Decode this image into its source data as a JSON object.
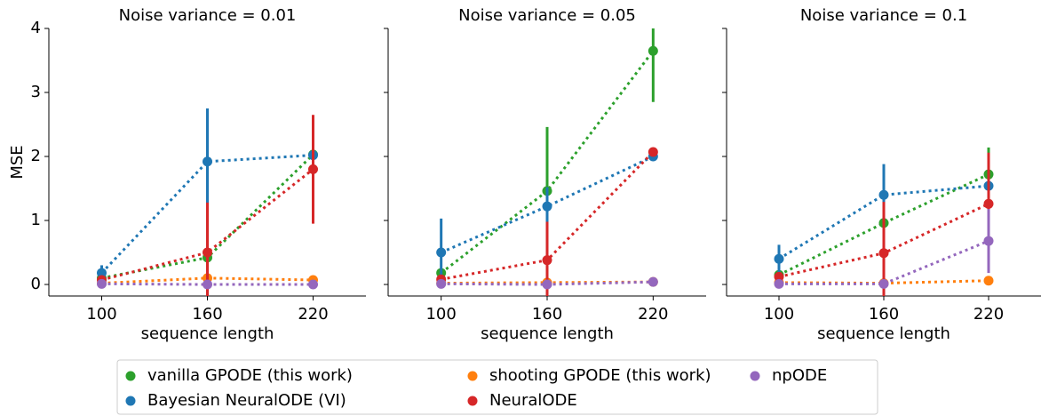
{
  "chart_data": [
    {
      "type": "pointplot",
      "title": "Noise variance = 0.01",
      "xlabel": "sequence length",
      "ylabel": "MSE",
      "categories": [
        "100",
        "160",
        "220"
      ],
      "ylim": [
        -0.18,
        4
      ],
      "yticks": [
        0,
        1,
        2,
        3,
        4
      ],
      "series": [
        {
          "values": [
            0.1,
            0.42,
            2.03
          ],
          "errors": [
            0.05,
            0.05,
            0.05
          ]
        },
        {
          "values": [
            0.18,
            1.92,
            2.02
          ],
          "errors": [
            0.12,
            0.83,
            0.03
          ]
        },
        {
          "values": [
            0.02,
            0.1,
            0.07
          ],
          "errors": [
            0.02,
            0.03,
            0.06
          ]
        },
        {
          "values": [
            0.07,
            0.5,
            1.8
          ],
          "errors": [
            0.04,
            0.78,
            0.85
          ]
        },
        {
          "values": [
            0.01,
            0.0,
            0.0
          ],
          "errors": [
            0.01,
            0.01,
            0.01
          ]
        }
      ]
    },
    {
      "type": "pointplot",
      "title": "Noise variance = 0.05",
      "xlabel": "sequence length",
      "categories": [
        "100",
        "160",
        "220"
      ],
      "ylim": [
        -0.18,
        4
      ],
      "yticks": [
        0,
        1,
        2,
        3,
        4
      ],
      "series": [
        {
          "values": [
            0.18,
            1.46,
            3.65
          ],
          "errors": [
            0.05,
            1.0,
            0.8
          ]
        },
        {
          "values": [
            0.5,
            1.22,
            2.0
          ],
          "errors": [
            0.53,
            0.3,
            0.05
          ]
        },
        {
          "values": [
            0.02,
            0.03,
            0.04
          ],
          "errors": [
            0.01,
            0.01,
            0.01
          ]
        },
        {
          "values": [
            0.08,
            0.38,
            2.07
          ],
          "errors": [
            0.04,
            0.6,
            0.05
          ]
        },
        {
          "values": [
            0.01,
            0.0,
            0.04
          ],
          "errors": [
            0.01,
            0.01,
            0.01
          ]
        }
      ]
    },
    {
      "type": "pointplot",
      "title": "Noise variance = 0.1",
      "xlabel": "sequence length",
      "categories": [
        "100",
        "160",
        "220"
      ],
      "ylim": [
        -0.18,
        4
      ],
      "yticks": [
        0,
        1,
        2,
        3,
        4
      ],
      "series": [
        {
          "values": [
            0.15,
            0.96,
            1.72
          ],
          "errors": [
            0.05,
            0.5,
            0.42
          ]
        },
        {
          "values": [
            0.4,
            1.4,
            1.54
          ],
          "errors": [
            0.22,
            0.48,
            0.5
          ]
        },
        {
          "values": [
            0.03,
            0.02,
            0.06
          ],
          "errors": [
            0.01,
            0.01,
            0.02
          ]
        },
        {
          "values": [
            0.12,
            0.49,
            1.26
          ],
          "errors": [
            0.05,
            0.8,
            0.8
          ]
        },
        {
          "values": [
            0.01,
            0.01,
            0.68
          ],
          "errors": [
            0.01,
            0.01,
            0.5
          ]
        }
      ]
    }
  ],
  "legend": [
    {
      "name": "vanilla GPODE (this work)",
      "color": "#2ca02c"
    },
    {
      "name": "Bayesian NeuralODE (VI)",
      "color": "#1f77b4"
    },
    {
      "name": "shooting GPODE (this work)",
      "color": "#ff7f0e"
    },
    {
      "name": "NeuralODE",
      "color": "#d62728"
    },
    {
      "name": "npODE",
      "color": "#9467bd"
    }
  ]
}
